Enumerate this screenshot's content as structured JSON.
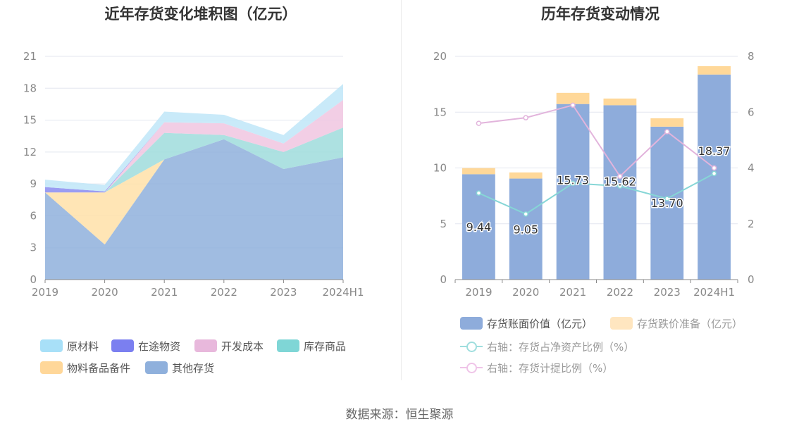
{
  "titles": {
    "left": "近年存货变化堆积图（亿元）",
    "right": "历年存货变动情况"
  },
  "source_text": "数据来源：恒生聚源",
  "chart_data": [
    {
      "type": "area",
      "stacked": true,
      "title": "近年存货变化堆积图（亿元）",
      "categories": [
        "2019",
        "2020",
        "2021",
        "2022",
        "2023",
        "2024H1"
      ],
      "ylim": [
        0,
        21
      ],
      "yticks": [
        "0",
        "3",
        "6",
        "9",
        "12",
        "15",
        "18",
        "21"
      ],
      "grid": true,
      "legend_position": "bottom",
      "series": [
        {
          "name": "其他存货",
          "color": "#8fb0dc",
          "values": [
            8.2,
            3.3,
            11.3,
            13.2,
            10.4,
            11.5
          ]
        },
        {
          "name": "物料备品备件",
          "color": "#ffe0a8",
          "values": [
            0.0,
            4.9,
            0.0,
            0.0,
            0.0,
            0.0
          ]
        },
        {
          "name": "库存商品",
          "color": "#9fdcdc",
          "values": [
            0.0,
            0.0,
            2.5,
            0.4,
            1.6,
            2.8
          ]
        },
        {
          "name": "开发成本",
          "color": "#f0c6e0",
          "values": [
            0.0,
            0.0,
            1.0,
            1.1,
            0.8,
            2.6
          ]
        },
        {
          "name": "在途物资",
          "color": "#8a8cf0",
          "values": [
            0.5,
            0.1,
            0.0,
            0.0,
            0.0,
            0.0
          ]
        },
        {
          "name": "原材料",
          "color": "#c0e6f8",
          "values": [
            0.7,
            0.6,
            1.0,
            0.8,
            0.8,
            1.5
          ]
        }
      ],
      "legend": [
        {
          "name": "原材料",
          "color": "#a8e0f8"
        },
        {
          "name": "在途物资",
          "color": "#7b7ff0"
        },
        {
          "name": "开发成本",
          "color": "#e8b8dc"
        },
        {
          "name": "库存商品",
          "color": "#7fd6d6"
        },
        {
          "name": "物料备品备件",
          "color": "#ffd799"
        },
        {
          "name": "其他存货",
          "color": "#8fb0dc"
        }
      ]
    },
    {
      "type": "bar",
      "stacked": true,
      "title": "历年存货变动情况",
      "categories": [
        "2019",
        "2020",
        "2021",
        "2022",
        "2023",
        "2024H1"
      ],
      "ylim": [
        0,
        20
      ],
      "yticks": [
        "0",
        "5",
        "10",
        "15",
        "20"
      ],
      "y2lim": [
        0,
        8
      ],
      "y2ticks": [
        "0",
        "2",
        "4",
        "6",
        "8"
      ],
      "grid": true,
      "legend_position": "bottom",
      "bars": [
        {
          "name": "存货账面价值（亿元）",
          "color": "#8eacdb",
          "values": [
            9.44,
            9.05,
            15.73,
            15.62,
            13.7,
            18.37
          ],
          "labels": [
            "9.44",
            "9.05",
            "15.73",
            "15.62",
            "13.70",
            "18.37"
          ]
        },
        {
          "name": "存货跌价准备（亿元）",
          "color": "#ffd899",
          "values": [
            0.55,
            0.55,
            1.0,
            0.6,
            0.75,
            0.75
          ]
        }
      ],
      "lines": [
        {
          "name": "右轴：存货占净资产比例（%）",
          "color": "#86d6d6",
          "axis": "right",
          "values": [
            3.1,
            2.35,
            3.45,
            3.35,
            2.9,
            3.8
          ]
        },
        {
          "name": "右轴：存货计提比例（%）",
          "color": "#e2b4dc",
          "axis": "right",
          "values": [
            5.6,
            5.8,
            6.25,
            3.7,
            5.3,
            4.0
          ]
        }
      ],
      "legend": [
        {
          "name": "存货账面价值（亿元）",
          "color": "#8eacdb",
          "kind": "box"
        },
        {
          "name": "存货跌价准备（亿元）",
          "color": "#ffe6c0",
          "kind": "box"
        },
        {
          "name": "右轴：存货占净资产比例（%）",
          "color": "#9fdede",
          "kind": "line"
        },
        {
          "name": "右轴：存货计提比例（%）",
          "color": "#efc4e8",
          "kind": "line"
        }
      ]
    }
  ]
}
